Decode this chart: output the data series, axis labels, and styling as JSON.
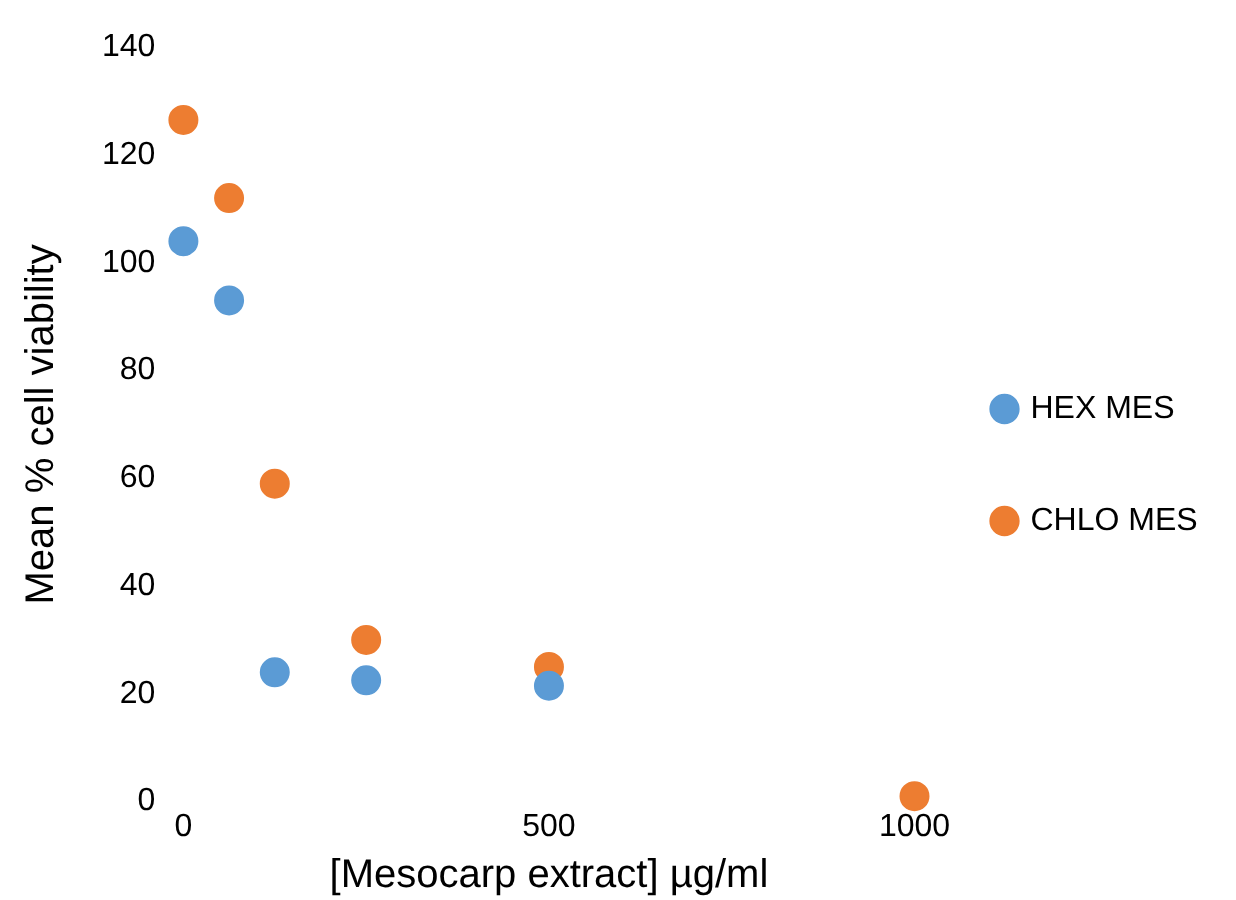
{
  "chart_data": {
    "type": "scatter",
    "xlabel": "[Mesocarp extract] µg/ml",
    "ylabel": "Mean % cell viability",
    "x": [
      0,
      62.5,
      125,
      250,
      500,
      1000
    ],
    "series": [
      {
        "name": "HEX MES",
        "color": "#5b9bd5",
        "values": [
          104,
          93,
          24,
          22.5,
          21.5,
          null
        ]
      },
      {
        "name": "CHLO MES",
        "color": "#ed7d31",
        "values": [
          126.5,
          112,
          59,
          30,
          25,
          1
        ]
      }
    ],
    "xlim": [
      0,
      1000
    ],
    "xticks": [
      0,
      500,
      1000
    ],
    "ylim": [
      0,
      140
    ],
    "yticks": [
      0,
      20,
      40,
      60,
      80,
      100,
      120,
      140
    ],
    "grid": false,
    "legend": "right",
    "marker": "circle"
  }
}
